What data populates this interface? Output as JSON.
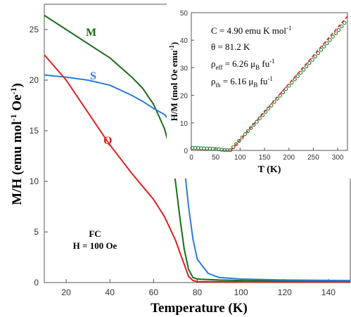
{
  "chart_data": [
    {
      "type": "line",
      "xlabel": "Temperature (K)",
      "ylabel": "M/H (emu mol-1 Oe-1)",
      "ylabel_parts": {
        "main": "M/H (emu mol",
        "sup1": "-1",
        "mid": " Oe",
        "sup2": "-1",
        "end": ")"
      },
      "xlim": [
        10,
        150
      ],
      "ylim": [
        0,
        27.5
      ],
      "xticks": [
        20,
        40,
        60,
        80,
        100,
        120,
        140
      ],
      "yticks": [
        0,
        5,
        10,
        15,
        20,
        25
      ],
      "grid": false,
      "annotation": [
        "FC",
        "H = 100 Oe"
      ],
      "series": [
        {
          "name": "M",
          "color": "#1a6b1a",
          "x": [
            10,
            20,
            30,
            40,
            50,
            55,
            60,
            65,
            68,
            70,
            72,
            74,
            76,
            78,
            80,
            85,
            90,
            100,
            120,
            150
          ],
          "y": [
            26.4,
            25.0,
            23.6,
            22.2,
            20.3,
            19.2,
            17.6,
            15.2,
            12.8,
            10.0,
            6.5,
            3.3,
            1.3,
            0.5,
            0.35,
            0.3,
            0.25,
            0.2,
            0.15,
            0.1
          ]
        },
        {
          "name": "S",
          "color": "#2b7bd8",
          "x": [
            10,
            20,
            30,
            40,
            50,
            55,
            60,
            65,
            70,
            72,
            74,
            76,
            78,
            80,
            85,
            90,
            100,
            120,
            150
          ],
          "y": [
            20.5,
            20.3,
            20.0,
            19.5,
            18.5,
            17.9,
            17.2,
            16.6,
            15.2,
            14.0,
            11.5,
            7.5,
            4.3,
            2.3,
            0.9,
            0.5,
            0.35,
            0.25,
            0.2
          ]
        },
        {
          "name": "Q",
          "color": "#e02020",
          "x": [
            10,
            20,
            30,
            40,
            50,
            55,
            60,
            65,
            70,
            72,
            74,
            76,
            78,
            80,
            90,
            100,
            120,
            150
          ],
          "y": [
            22.5,
            20.0,
            16.8,
            13.6,
            10.8,
            9.5,
            8.2,
            6.5,
            4.2,
            3.0,
            1.8,
            0.6,
            0.2,
            0.1,
            0.08,
            0.06,
            0.05,
            0.05
          ]
        }
      ]
    },
    {
      "type": "scatter",
      "inset": true,
      "xlabel": "T (K)",
      "ylabel": "H/M (mol Oe emu-1)",
      "ylabel_parts": {
        "main": "H/M (mol Oe emu",
        "sup": "-1",
        "end": ")"
      },
      "xlim": [
        0,
        320
      ],
      "ylim": [
        0,
        50
      ],
      "xticks": [
        0,
        50,
        100,
        150,
        200,
        250,
        300
      ],
      "yticks": [
        0,
        10,
        20,
        30,
        40,
        50
      ],
      "fit_info": {
        "C": {
          "prefix": "C = 4.90 emu K mol",
          "sup": "-1"
        },
        "theta": {
          "text": "θ = 81.2 K"
        },
        "rho_eff": {
          "sym": "ρ",
          "sub": "eff",
          "eq": " = 6.26 μ",
          "sub2": "B",
          "unit": " fu",
          "sup": "-1"
        },
        "rho_th": {
          "sym": "ρ",
          "sub": "th",
          "eq": " = 6.16 μ",
          "sub2": "B",
          "unit": " fu",
          "sup": "-1"
        }
      },
      "series": [
        {
          "name": "",
          "color": "#1a6b1a",
          "x": [
            2,
            8,
            14,
            20,
            26,
            32,
            38,
            44,
            50,
            56,
            62,
            68,
            74,
            80,
            86,
            92,
            98,
            104,
            110,
            116,
            122,
            128,
            134,
            140,
            146,
            152,
            158,
            164,
            170,
            176,
            182,
            188,
            194,
            200,
            206,
            212,
            218,
            224,
            230,
            236,
            242,
            248,
            254,
            260,
            266,
            272,
            278,
            284,
            290,
            296,
            302,
            308,
            314
          ],
          "y": [
            0.9,
            0.9,
            0.85,
            0.8,
            0.75,
            0.7,
            0.65,
            0.6,
            0.5,
            0.4,
            0.25,
            0.15,
            0.1,
            0.1,
            1.2,
            2.3,
            3.5,
            4.7,
            5.9,
            7.0,
            8.1,
            9.3,
            10.4,
            11.6,
            12.8,
            14.0,
            15.2,
            16.3,
            17.6,
            18.8,
            19.9,
            21.1,
            22.3,
            23.5,
            24.6,
            25.8,
            27.0,
            28.2,
            29.3,
            30.5,
            31.7,
            32.9,
            34.1,
            35.3,
            36.5,
            37.7,
            38.9,
            40.1,
            41.3,
            42.5,
            43.7,
            45.0,
            46.3
          ]
        },
        {
          "name": "",
          "color": "#e02020",
          "dashed": true,
          "x": [
            81.2,
            320
          ],
          "y": [
            0,
            48.7
          ]
        }
      ]
    }
  ]
}
